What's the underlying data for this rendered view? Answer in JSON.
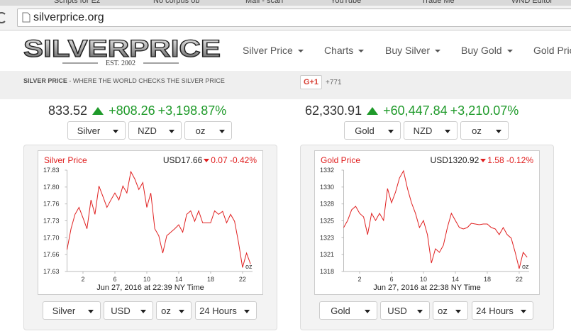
{
  "browser": {
    "tabs": [
      "Scripts for Ez",
      "No corpus ob",
      "Mail - scari",
      "YouTube",
      "Trade Me",
      "WND Editor"
    ],
    "address": "silverprice.org"
  },
  "logo": {
    "name": "SILVERPRICE",
    "est": "EST. 2002"
  },
  "nav": [
    "Silver Price",
    "Charts",
    "Buy Silver",
    "Buy Gold",
    "Gold Price"
  ],
  "tagline": {
    "brand": "SILVER PRICE",
    "separator": "-",
    "text": "WHERE THE WORLD CHECKS THE SILVER PRICE"
  },
  "gplus": {
    "label": "G+1",
    "count": "+771"
  },
  "panels": [
    {
      "price": "833.52",
      "change": "+808.26",
      "percent": "+3,198.87%",
      "selects": [
        "Silver",
        "NZD",
        "oz"
      ],
      "bottom_selects": [
        "Silver",
        "USD",
        "oz",
        "24 Hours"
      ]
    },
    {
      "price": "62,330.91",
      "change": "+60,447.84",
      "percent": "+3,210.07%",
      "selects": [
        "Gold",
        "NZD",
        "oz"
      ],
      "bottom_selects": [
        "Gold",
        "USD",
        "oz",
        "24 Hours"
      ]
    }
  ],
  "chart_data": [
    {
      "type": "line",
      "title": "Silver Price",
      "quote": "USD17.66",
      "change": "0.07",
      "percent": "-0.42%",
      "unit": "oz",
      "timestamp": "Jun 27, 2016 at 22:39 NY Time",
      "color": "#e02020",
      "x": [
        0,
        0.5,
        1,
        1.5,
        2,
        2.5,
        3,
        3.5,
        4,
        4.5,
        5,
        5.5,
        6,
        6.5,
        7,
        7.5,
        8,
        8.5,
        9,
        9.5,
        10,
        10.5,
        11,
        11.5,
        12,
        12.5,
        13,
        13.5,
        14,
        14.5,
        15,
        15.5,
        16,
        16.5,
        17,
        17.5,
        18,
        18.5,
        19,
        19.5,
        20,
        20.5,
        21,
        21.5,
        22,
        22.5,
        23
      ],
      "values": [
        17.672,
        17.714,
        17.743,
        17.757,
        17.736,
        17.714,
        17.772,
        17.743,
        17.8,
        17.779,
        17.757,
        17.772,
        17.786,
        17.772,
        17.8,
        17.786,
        17.829,
        17.814,
        17.793,
        17.807,
        17.757,
        17.786,
        17.714,
        17.7,
        17.665,
        17.7,
        17.707,
        17.714,
        17.722,
        17.707,
        17.743,
        17.75,
        17.729,
        17.75,
        17.726,
        17.726,
        17.726,
        17.75,
        17.743,
        17.749,
        17.726,
        17.743,
        17.729,
        17.686,
        17.636,
        17.665,
        17.643
      ],
      "xlim": [
        0,
        23.25
      ],
      "xticks": [
        2,
        6,
        10,
        14,
        18,
        22
      ],
      "ylim": [
        17.628,
        17.832
      ],
      "yticks": [
        {
          "value": 17.628,
          "label": "17.63"
        },
        {
          "value": 17.662,
          "label": "17.66"
        },
        {
          "value": 17.696,
          "label": "17.70"
        },
        {
          "value": 17.73,
          "label": "17.73"
        },
        {
          "value": 17.764,
          "label": "17.76"
        },
        {
          "value": 17.798,
          "label": "17.80"
        },
        {
          "value": 17.832,
          "label": "17.83"
        }
      ],
      "grid": false
    },
    {
      "type": "line",
      "title": "Gold Price",
      "quote": "USD1320.92",
      "change": "1.58",
      "percent": "-0.12%",
      "unit": "oz",
      "timestamp": "Jun 27, 2016 at 22:38 NY Time",
      "color": "#e02020",
      "x": [
        0,
        0.5,
        1,
        1.5,
        2,
        2.5,
        3,
        3.5,
        4,
        4.5,
        5,
        5.5,
        6,
        6.5,
        7,
        7.5,
        8,
        8.5,
        9,
        9.5,
        10,
        10.5,
        11,
        11.5,
        12,
        12.5,
        13,
        13.5,
        14,
        14.5,
        15,
        15.5,
        16,
        16.5,
        17,
        17.5,
        18,
        18.5,
        19,
        19.5,
        20,
        20.5,
        21,
        21.5,
        22,
        22.5,
        23
      ],
      "values": [
        1324.26,
        1325.24,
        1326.71,
        1327.19,
        1326.22,
        1325.73,
        1323.28,
        1326.22,
        1325.24,
        1326.22,
        1325.24,
        1329.64,
        1327.68,
        1329.15,
        1331.1,
        1332.08,
        1329.64,
        1327.68,
        1326.22,
        1324.26,
        1325.24,
        1323.28,
        1319.37,
        1321.33,
        1320.84,
        1321.82,
        1324.26,
        1326.22,
        1325.24,
        1324.26,
        1324.07,
        1324.26,
        1324.85,
        1324.75,
        1324.65,
        1324.75,
        1324.75,
        1324.26,
        1324.07,
        1323.28,
        1324.26,
        1323.28,
        1322.8,
        1320.84,
        1318.59,
        1320.84,
        1320.16
      ],
      "xlim": [
        0,
        23.25
      ],
      "xticks": [
        2,
        6,
        10,
        14,
        18,
        22
      ],
      "ylim": [
        1318.2,
        1332.18
      ],
      "yticks": [
        {
          "value": 1318.2,
          "label": "1318"
        },
        {
          "value": 1320.53,
          "label": "1321"
        },
        {
          "value": 1322.86,
          "label": "1323"
        },
        {
          "value": 1325.19,
          "label": "1325"
        },
        {
          "value": 1327.52,
          "label": "1328"
        },
        {
          "value": 1329.85,
          "label": "1330"
        },
        {
          "value": 1332.18,
          "label": "1332"
        }
      ],
      "grid": false
    }
  ]
}
